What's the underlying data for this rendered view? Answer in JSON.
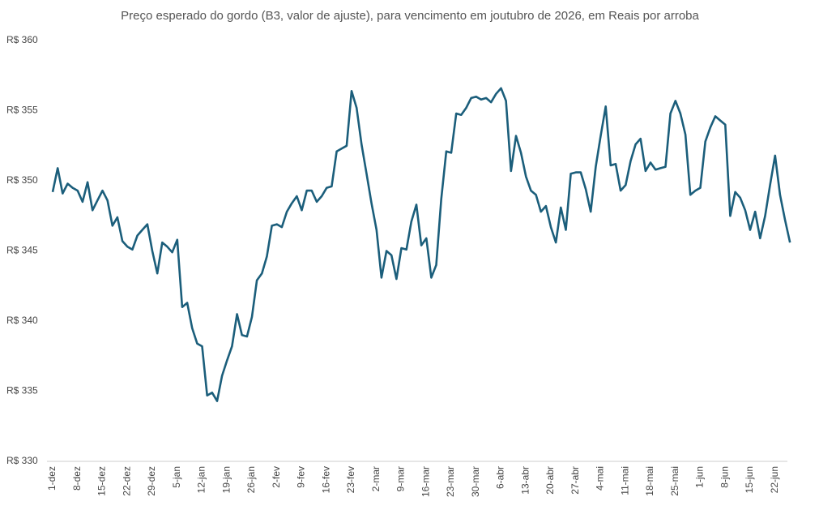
{
  "chart_data": {
    "type": "line",
    "title": "Preço esperado do gordo (B3, valor de ajuste), para vencimento em joutubro de 2026, em Reais por arroba",
    "categories": [
      "1-dez",
      null,
      null,
      null,
      null,
      "8-dez",
      null,
      null,
      null,
      null,
      "15-dez",
      null,
      null,
      null,
      null,
      "22-dez",
      null,
      null,
      null,
      null,
      "29-dez",
      null,
      null,
      null,
      null,
      "5-jan",
      null,
      null,
      null,
      null,
      "12-jan",
      null,
      null,
      null,
      null,
      "19-jan",
      null,
      null,
      null,
      null,
      "26-jan",
      null,
      null,
      null,
      null,
      "2-fev",
      null,
      null,
      null,
      null,
      "9-fev",
      null,
      null,
      null,
      null,
      "16-fev",
      null,
      null,
      null,
      null,
      "23-fev",
      null,
      null,
      null,
      null,
      "2-mar",
      null,
      null,
      null,
      null,
      "9-mar",
      null,
      null,
      null,
      null,
      "16-mar",
      null,
      null,
      null,
      null,
      "23-mar",
      null,
      null,
      null,
      null,
      "30-mar",
      null,
      null,
      null,
      null,
      "6-abr",
      null,
      null,
      null,
      null,
      "13-abr",
      null,
      null,
      null,
      null,
      "20-abr",
      null,
      null,
      null,
      null,
      "27-abr",
      null,
      null,
      null,
      null,
      "4-mai",
      null,
      null,
      null,
      null,
      "11-mai",
      null,
      null,
      null,
      null,
      "18-mai",
      null,
      null,
      null,
      null,
      "25-mai",
      null,
      null,
      null,
      null,
      "1-jun",
      null,
      null,
      null,
      null,
      "8-jun",
      null,
      null,
      null,
      null,
      "15-jun",
      null,
      null,
      null,
      null,
      "22-jun",
      null,
      null,
      null
    ],
    "series": [
      {
        "name": "Preço",
        "color": "#1b5e7b",
        "values": [
          349.2,
          350.9,
          349.1,
          349.8,
          349.5,
          349.3,
          348.5,
          349.9,
          347.9,
          348.6,
          349.3,
          348.6,
          346.8,
          347.4,
          345.7,
          345.3,
          345.1,
          346.1,
          346.5,
          346.9,
          345.0,
          343.4,
          345.6,
          345.3,
          344.9,
          345.8,
          341.0,
          341.3,
          339.5,
          338.4,
          338.2,
          334.7,
          334.9,
          334.3,
          336.1,
          337.2,
          338.2,
          340.5,
          339.0,
          338.9,
          340.3,
          342.9,
          343.4,
          344.6,
          346.8,
          346.9,
          346.7,
          347.8,
          348.4,
          348.9,
          347.9,
          349.3,
          349.3,
          348.5,
          348.9,
          349.5,
          349.6,
          352.1,
          352.3,
          352.5,
          356.4,
          355.2,
          352.6,
          350.5,
          348.4,
          346.5,
          343.1,
          345.0,
          344.7,
          343.0,
          345.2,
          345.1,
          347.1,
          348.3,
          345.4,
          345.9,
          343.1,
          344.0,
          348.7,
          352.1,
          352.0,
          354.8,
          354.7,
          355.2,
          355.9,
          356.0,
          355.8,
          355.9,
          355.6,
          356.2,
          356.6,
          355.7,
          350.7,
          353.2,
          352.0,
          350.3,
          349.3,
          349.0,
          347.8,
          348.2,
          346.7,
          345.6,
          348.1,
          346.5,
          350.5,
          350.6,
          350.6,
          349.4,
          347.8,
          351.0,
          353.2,
          355.3,
          351.1,
          351.2,
          349.3,
          349.7,
          351.4,
          352.6,
          353.0,
          350.7,
          351.3,
          350.8,
          350.9,
          351.0,
          354.8,
          355.7,
          354.8,
          353.3,
          349.0,
          349.3,
          349.5,
          352.8,
          353.8,
          354.6,
          354.3,
          354.0,
          347.5,
          349.2,
          348.8,
          347.9,
          346.5,
          347.8,
          345.9,
          347.5,
          349.7,
          351.8,
          349.0,
          347.2,
          345.6
        ]
      }
    ],
    "ylim": [
      330,
      360
    ],
    "yticks": [
      {
        "value": 330,
        "label": "R$ 330"
      },
      {
        "value": 335,
        "label": "R$ 335"
      },
      {
        "value": 340,
        "label": "R$ 340"
      },
      {
        "value": 345,
        "label": "R$ 345"
      },
      {
        "value": 350,
        "label": "R$ 350"
      },
      {
        "value": 355,
        "label": "R$ 355"
      },
      {
        "value": 360,
        "label": "R$ 360"
      }
    ],
    "grid": false
  }
}
